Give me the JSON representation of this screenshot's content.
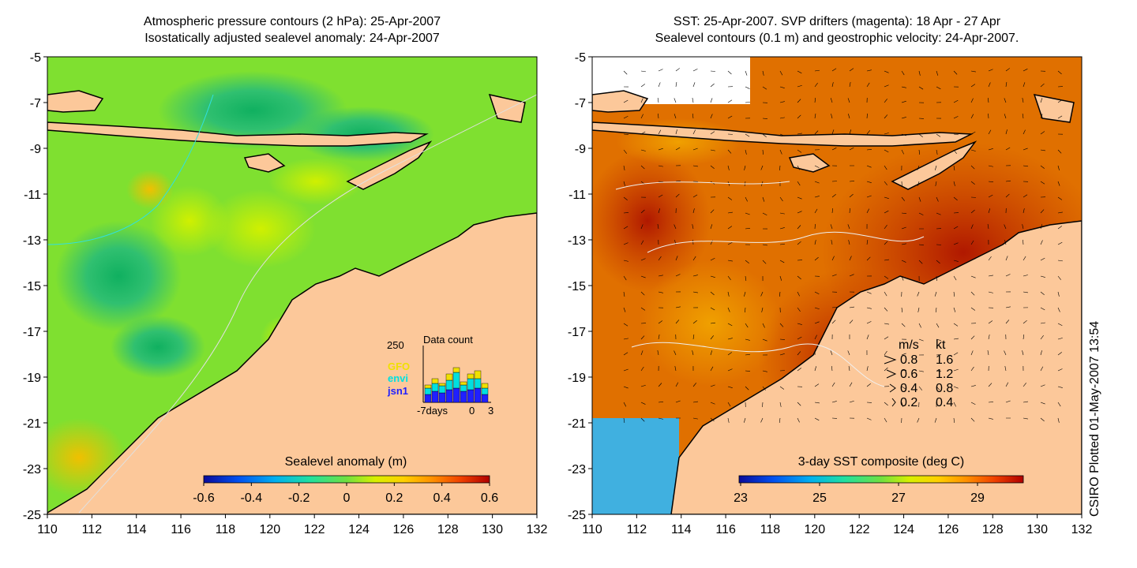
{
  "left_panel": {
    "title_line1": "Atmospheric pressure contours (2 hPa): 25-Apr-2007",
    "title_line2": "Isostatically adjusted sealevel anomaly: 24-Apr-2007",
    "colorbar_title": "Sealevel anomaly (m)",
    "colorbar_ticks": [
      "-0.6",
      "-0.4",
      "-0.2",
      "0",
      "0.2",
      "0.4",
      "0.6"
    ],
    "colorbar_colors": [
      "#0a0a9a",
      "#0050f0",
      "#00b0f0",
      "#20e0a0",
      "#70e040",
      "#d8f000",
      "#ffd000",
      "#ff9000",
      "#f04000",
      "#b00000"
    ],
    "inset": {
      "title": "Data count",
      "max_label": "250",
      "x_labels": [
        "-7days",
        "0",
        "3"
      ],
      "legend": [
        {
          "name": "GFO",
          "color": "#f0e000"
        },
        {
          "name": "envi",
          "color": "#00e0e0"
        },
        {
          "name": "jsn1",
          "color": "#2020ff"
        }
      ]
    }
  },
  "right_panel": {
    "title_line1": "SST: 25-Apr-2007. SVP drifters (magenta): 18 Apr - 27 Apr",
    "title_line2": "Sealevel contours (0.1 m) and geostrophic velocity: 24-Apr-2007.",
    "colorbar_title": "3-day SST composite (deg C)",
    "colorbar_ticks": [
      "23",
      "25",
      "27",
      "29"
    ],
    "colorbar_colors": [
      "#0a0a9a",
      "#0050f0",
      "#00b0f0",
      "#20e0a0",
      "#70e040",
      "#d8f000",
      "#ffd000",
      "#ff9000",
      "#f04000",
      "#b00000"
    ],
    "velocity_legend": {
      "header_ms": "m/s",
      "header_kt": "kt",
      "rows": [
        {
          "ms": "0.8",
          "kt": "1.6"
        },
        {
          "ms": "0.6",
          "kt": "1.2"
        },
        {
          "ms": "0.4",
          "kt": "0.8"
        },
        {
          "ms": "0.2",
          "kt": "0.4"
        }
      ]
    }
  },
  "axes": {
    "x_ticks": [
      "110",
      "112",
      "114",
      "116",
      "118",
      "120",
      "122",
      "124",
      "126",
      "128",
      "130",
      "132"
    ],
    "y_ticks": [
      "-5",
      "-7",
      "-9",
      "-11",
      "-13",
      "-15",
      "-17",
      "-19",
      "-21",
      "-23",
      "-25"
    ]
  },
  "credit": "CSIRO Plotted 01-May-2007 13:54",
  "colors": {
    "land": "#fcc89a",
    "sla_base": "#7fe030",
    "sst_base": "#e07000"
  }
}
